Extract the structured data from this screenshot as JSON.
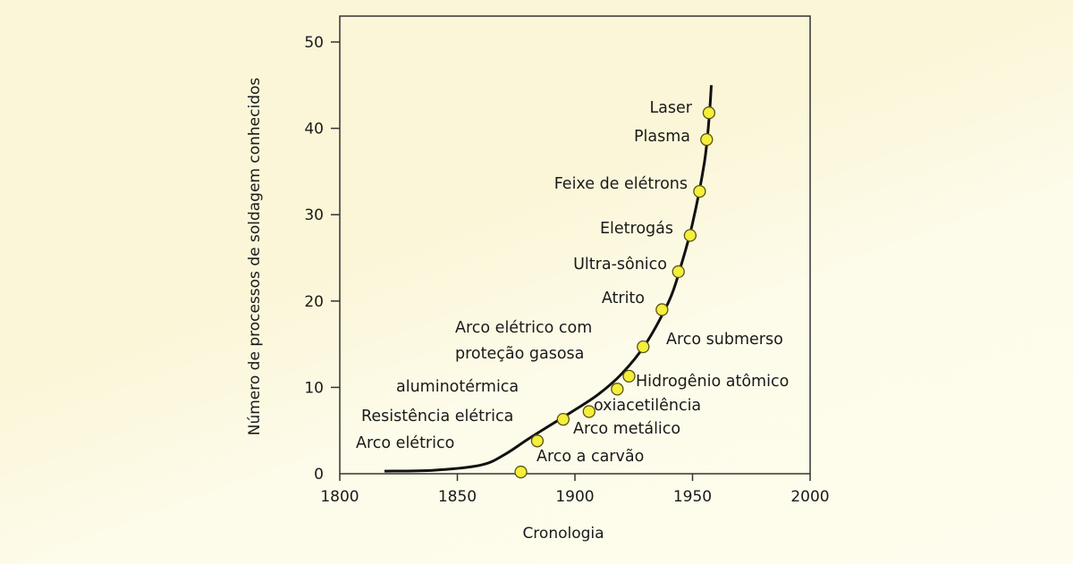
{
  "chart_data": {
    "type": "scatter",
    "title": "",
    "xlabel": "Cronologia",
    "ylabel": "Número de processos de soldagem conhecidos",
    "xlim": [
      1800,
      2000
    ],
    "ylim": [
      0,
      53
    ],
    "x_ticks": [
      1800,
      1850,
      1900,
      1950,
      2000
    ],
    "y_ticks": [
      0,
      10,
      20,
      30,
      40,
      50
    ],
    "grid": false,
    "colors": {
      "marker_fill": "#f5ee3a",
      "marker_stroke": "#5a5418",
      "line": "#111111",
      "frame": "#333333"
    },
    "series": [
      {
        "type": "line",
        "points": [
          [
            1819,
            0.3
          ],
          [
            1840,
            0.4
          ],
          [
            1860,
            1.0
          ],
          [
            1870,
            2.2
          ],
          [
            1880,
            4.0
          ],
          [
            1890,
            5.7
          ],
          [
            1900,
            7.4
          ],
          [
            1910,
            9.2
          ],
          [
            1920,
            11.6
          ],
          [
            1930,
            15.0
          ],
          [
            1940,
            20.0
          ],
          [
            1945,
            24.0
          ],
          [
            1950,
            29.0
          ],
          [
            1955,
            36.0
          ],
          [
            1957,
            41.0
          ],
          [
            1958,
            45.0
          ]
        ]
      },
      {
        "type": "scatter",
        "points": [
          {
            "label": "Arco a carvão",
            "x": 1877,
            "y": 0.2
          },
          {
            "label": "Arco metálico",
            "x": 1884,
            "y": 3.8
          },
          {
            "label": "aluminotérmica",
            "x": 1895,
            "y": 6.3
          },
          {
            "label": "oxiacetilência",
            "x": 1906,
            "y": 7.2
          },
          {
            "label": "Hidrogênio atômico",
            "x": 1918,
            "y": 9.8
          },
          {
            "label": "Arco submerso",
            "x": 1923,
            "y": 11.3
          },
          {
            "label": "Arco elétrico com proteção gasosa",
            "x": 1929,
            "y": 14.7
          },
          {
            "label": "Atrito",
            "x": 1937,
            "y": 19.0
          },
          {
            "label": "Ultra-sônico",
            "x": 1944,
            "y": 23.4
          },
          {
            "label": "Eletrogás",
            "x": 1949,
            "y": 27.6
          },
          {
            "label": "Feixe de elétrons",
            "x": 1953,
            "y": 32.7
          },
          {
            "label": "Plasma",
            "x": 1956,
            "y": 38.7
          },
          {
            "label": "Laser",
            "x": 1957,
            "y": 41.8
          }
        ]
      }
    ],
    "annotations": [
      {
        "lines": [
          "Laser"
        ],
        "anchor": "end"
      },
      {
        "lines": [
          "Plasma"
        ],
        "anchor": "end"
      },
      {
        "lines": [
          "Feixe de elétrons"
        ],
        "anchor": "end"
      },
      {
        "lines": [
          "Eletrogás"
        ],
        "anchor": "end"
      },
      {
        "lines": [
          "Ultra-sônico"
        ],
        "anchor": "end"
      },
      {
        "lines": [
          "Atrito"
        ],
        "anchor": "end"
      },
      {
        "lines": [
          "Arco elétrico com",
          "proteção gasosa"
        ],
        "anchor": "start"
      },
      {
        "lines": [
          "Arco submerso"
        ],
        "anchor": "start"
      },
      {
        "lines": [
          "Hidrogênio atômico"
        ],
        "anchor": "start"
      },
      {
        "lines": [
          "aluminotérmica"
        ],
        "anchor": "start"
      },
      {
        "lines": [
          "oxiacetilência"
        ],
        "anchor": "start"
      },
      {
        "lines": [
          "Resistência elétrica"
        ],
        "anchor": "start"
      },
      {
        "lines": [
          "Arco metálico"
        ],
        "anchor": "start"
      },
      {
        "lines": [
          "Arco elétrico"
        ],
        "anchor": "start"
      },
      {
        "lines": [
          "Arco a carvão"
        ],
        "anchor": "start"
      }
    ]
  }
}
